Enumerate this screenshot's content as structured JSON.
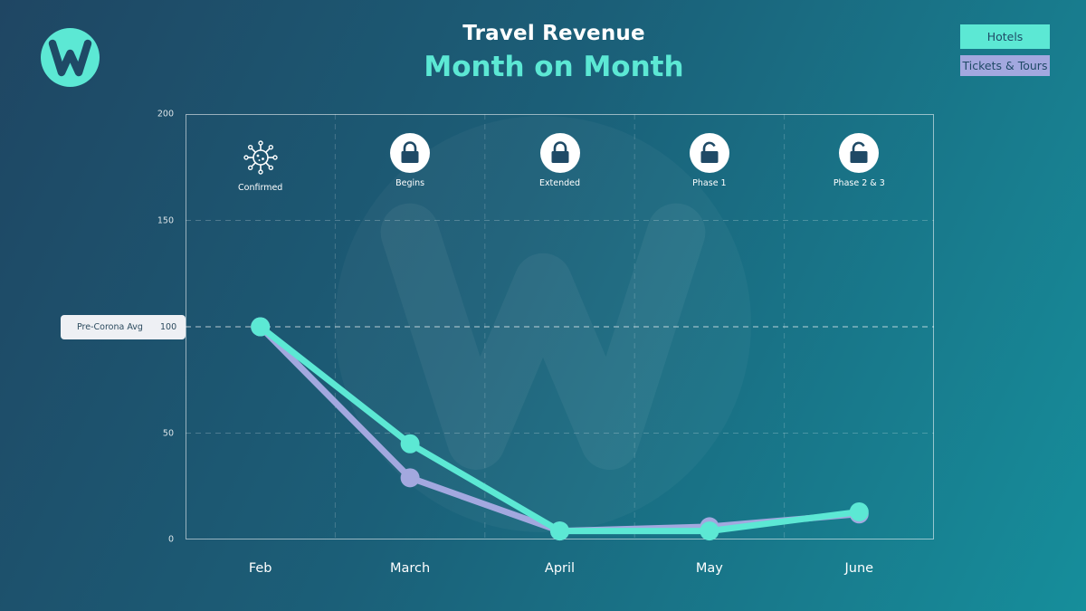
{
  "branding": {
    "logo_icon": "w-logo-icon",
    "accent_color": "#5ce8d4"
  },
  "chart_data": {
    "type": "line",
    "title": "Travel Revenue",
    "subtitle": "Month on Month",
    "categories": [
      "Feb",
      "March",
      "April",
      "May",
      "June"
    ],
    "ylim": [
      0,
      200
    ],
    "yticks": [
      0,
      50,
      100,
      150,
      200
    ],
    "grid": true,
    "legend_position": "top-right",
    "series": [
      {
        "name": "Hotels",
        "color": "#5ce8d4",
        "values": [
          100,
          45,
          4,
          4,
          13
        ]
      },
      {
        "name": "Tickets & Tours",
        "color": "#a3a8df",
        "values": [
          100,
          29,
          4,
          6,
          12
        ]
      }
    ],
    "reference_line": {
      "label": "Pre-Corona Avg",
      "value": 100
    },
    "events": [
      {
        "label": "Confirmed",
        "icon": "virus-icon",
        "category": "Feb"
      },
      {
        "label": "Begins",
        "icon": "lock-closed-icon",
        "category": "March"
      },
      {
        "label": "Extended",
        "icon": "lock-closed-icon",
        "category": "April"
      },
      {
        "label": "Phase 1",
        "icon": "lock-open-icon",
        "category": "May"
      },
      {
        "label": "Phase 2 & 3",
        "icon": "lock-open-icon",
        "category": "June"
      }
    ]
  }
}
